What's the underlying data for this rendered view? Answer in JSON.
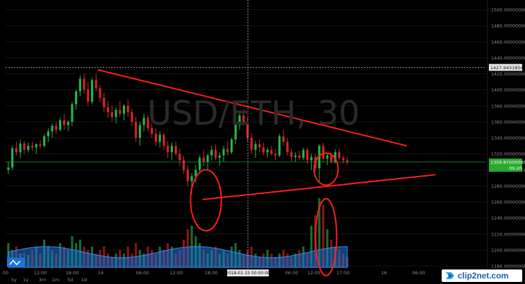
{
  "watermark": {
    "logo_text": "clip2net.com"
  },
  "chart_data": {
    "type": "candlestick",
    "symbol_watermark": "USD/ETH, 30",
    "price_axis": {
      "min": 1180,
      "max": 1500,
      "ticks": [
        "1500.00000000",
        "1480.00000000",
        "1460.00000000",
        "1440.00000000",
        "1420.00000000",
        "1400.00000000",
        "1380.00000000",
        "1360.00000000",
        "1340.00000000",
        "1320.00000000",
        "1300.00000000",
        "1280.00000000",
        "1260.00000000",
        "1240.00000000",
        "1220.00000000",
        "1200.00000000",
        "1180.00000000"
      ],
      "tick_values": [
        1500,
        1480,
        1460,
        1440,
        1420,
        1400,
        1380,
        1360,
        1340,
        1320,
        1300,
        1280,
        1260,
        1240,
        1220,
        1200,
        1180
      ],
      "crosshair_price_label": "1427.94318547",
      "crosshair_price": 1427.94,
      "last_price_label": "1309.87000000",
      "last_price": 1309.87,
      "countdown_label": "09:20"
    },
    "time_axis": {
      "labels": [
        "00",
        "12:00",
        "18:00",
        "14",
        "06:00",
        "12:00",
        "18:00",
        "18:00",
        "06:00",
        "12:00",
        "17:00",
        "16",
        "06:00"
      ],
      "crosshair_time_label": "2018-01-15 00:00:00"
    },
    "timeframe_buttons": [
      "5y",
      "1y",
      "3m",
      "1m",
      "5d",
      "1d"
    ],
    "candles": [
      [
        1300,
        1310,
        1295,
        1303
      ],
      [
        1303,
        1330,
        1300,
        1327
      ],
      [
        1327,
        1335,
        1318,
        1322
      ],
      [
        1322,
        1338,
        1315,
        1333
      ],
      [
        1333,
        1336,
        1320,
        1325
      ],
      [
        1325,
        1334,
        1322,
        1330
      ],
      [
        1330,
        1335,
        1324,
        1328
      ],
      [
        1328,
        1333,
        1320,
        1332
      ],
      [
        1332,
        1337,
        1326,
        1330
      ],
      [
        1330,
        1345,
        1328,
        1342
      ],
      [
        1342,
        1352,
        1335,
        1348
      ],
      [
        1348,
        1358,
        1340,
        1355
      ],
      [
        1355,
        1360,
        1345,
        1350
      ],
      [
        1350,
        1365,
        1348,
        1362
      ],
      [
        1362,
        1370,
        1350,
        1356
      ],
      [
        1356,
        1362,
        1348,
        1360
      ],
      [
        1360,
        1385,
        1355,
        1382
      ],
      [
        1382,
        1400,
        1375,
        1398
      ],
      [
        1398,
        1418,
        1392,
        1414
      ],
      [
        1414,
        1420,
        1395,
        1400
      ],
      [
        1400,
        1410,
        1380,
        1385
      ],
      [
        1385,
        1415,
        1382,
        1412
      ],
      [
        1412,
        1420,
        1398,
        1402
      ],
      [
        1402,
        1406,
        1385,
        1390
      ],
      [
        1390,
        1396,
        1372,
        1378
      ],
      [
        1378,
        1386,
        1365,
        1372
      ],
      [
        1372,
        1380,
        1360,
        1366
      ],
      [
        1366,
        1378,
        1358,
        1375
      ],
      [
        1375,
        1386,
        1366,
        1370
      ],
      [
        1370,
        1382,
        1362,
        1380
      ],
      [
        1380,
        1388,
        1366,
        1372
      ],
      [
        1372,
        1376,
        1355,
        1360
      ],
      [
        1360,
        1366,
        1335,
        1340
      ],
      [
        1340,
        1360,
        1330,
        1356
      ],
      [
        1356,
        1370,
        1348,
        1365
      ],
      [
        1365,
        1368,
        1348,
        1352
      ],
      [
        1352,
        1358,
        1340,
        1345
      ],
      [
        1345,
        1352,
        1330,
        1335
      ],
      [
        1335,
        1348,
        1328,
        1344
      ],
      [
        1344,
        1346,
        1325,
        1330
      ],
      [
        1330,
        1336,
        1315,
        1322
      ],
      [
        1322,
        1334,
        1312,
        1330
      ],
      [
        1330,
        1335,
        1318,
        1320
      ],
      [
        1320,
        1326,
        1305,
        1312
      ],
      [
        1312,
        1318,
        1295,
        1300
      ],
      [
        1300,
        1305,
        1280,
        1286
      ],
      [
        1286,
        1296,
        1270,
        1292
      ],
      [
        1292,
        1306,
        1284,
        1300
      ],
      [
        1300,
        1318,
        1296,
        1315
      ],
      [
        1315,
        1325,
        1305,
        1310
      ],
      [
        1310,
        1320,
        1300,
        1318
      ],
      [
        1318,
        1330,
        1312,
        1325
      ],
      [
        1325,
        1332,
        1312,
        1315
      ],
      [
        1315,
        1322,
        1305,
        1318
      ],
      [
        1318,
        1330,
        1310,
        1326
      ],
      [
        1326,
        1336,
        1318,
        1322
      ],
      [
        1322,
        1340,
        1320,
        1338
      ],
      [
        1338,
        1360,
        1332,
        1356
      ],
      [
        1356,
        1372,
        1350,
        1368
      ],
      [
        1368,
        1376,
        1355,
        1360
      ],
      [
        1360,
        1365,
        1335,
        1340
      ],
      [
        1340,
        1346,
        1320,
        1325
      ],
      [
        1325,
        1336,
        1315,
        1332
      ],
      [
        1332,
        1338,
        1322,
        1328
      ],
      [
        1328,
        1334,
        1318,
        1322
      ],
      [
        1322,
        1328,
        1315,
        1325
      ],
      [
        1325,
        1330,
        1318,
        1320
      ],
      [
        1320,
        1326,
        1312,
        1318
      ],
      [
        1318,
        1345,
        1316,
        1342
      ],
      [
        1342,
        1350,
        1330,
        1335
      ],
      [
        1335,
        1340,
        1318,
        1322
      ],
      [
        1322,
        1326,
        1310,
        1316
      ],
      [
        1316,
        1322,
        1310,
        1318
      ],
      [
        1318,
        1324,
        1312,
        1315
      ],
      [
        1315,
        1328,
        1312,
        1325
      ],
      [
        1325,
        1328,
        1308,
        1312
      ],
      [
        1312,
        1320,
        1300,
        1316
      ],
      [
        1316,
        1320,
        1298,
        1302
      ],
      [
        1302,
        1332,
        1286,
        1330
      ],
      [
        1330,
        1334,
        1310,
        1314
      ],
      [
        1314,
        1320,
        1306,
        1318
      ],
      [
        1318,
        1322,
        1308,
        1310
      ],
      [
        1310,
        1326,
        1308,
        1322
      ],
      [
        1322,
        1326,
        1312,
        1315
      ],
      [
        1315,
        1318,
        1308,
        1312
      ],
      [
        1312,
        1316,
        1306,
        1310
      ]
    ],
    "volume": [
      0.35,
      0.25,
      0.3,
      0.2,
      0.22,
      0.18,
      0.25,
      0.3,
      0.2,
      0.4,
      0.3,
      0.25,
      0.2,
      0.35,
      0.3,
      0.25,
      0.45,
      0.35,
      0.4,
      0.3,
      0.25,
      0.3,
      0.2,
      0.25,
      0.3,
      0.2,
      0.15,
      0.2,
      0.25,
      0.2,
      0.3,
      0.2,
      0.35,
      0.25,
      0.2,
      0.3,
      0.25,
      0.2,
      0.3,
      0.25,
      0.35,
      0.3,
      0.2,
      0.25,
      0.4,
      0.55,
      0.6,
      0.45,
      0.35,
      0.25,
      0.2,
      0.25,
      0.3,
      0.2,
      0.25,
      0.2,
      0.3,
      0.35,
      0.25,
      0.2,
      0.25,
      0.3,
      0.2,
      0.15,
      0.2,
      0.25,
      0.2,
      0.15,
      0.2,
      0.25,
      0.2,
      0.15,
      0.2,
      0.25,
      0.3,
      0.2,
      0.6,
      0.75,
      1.0,
      0.9,
      0.55,
      0.4,
      0.3,
      0.25,
      0.2,
      0.15
    ],
    "trendlines": [
      {
        "from": [
          0.192,
          1425
        ],
        "to": [
          0.835,
          1330
        ],
        "color": "#ff1e1e"
      },
      {
        "from": [
          0.41,
          1263
        ],
        "to": [
          0.895,
          1294
        ],
        "color": "#ff1e1e"
      }
    ],
    "ellipses": [
      {
        "cx": 0.417,
        "price_center": 1262,
        "rx": 0.032,
        "price_ry": 38,
        "color": "#ff1e1e"
      },
      {
        "cx": 0.667,
        "price_center": 1301,
        "rx": 0.025,
        "price_ry": 20,
        "color": "#ff1e1e"
      },
      {
        "cx": 0.667,
        "price_center": 1216,
        "rx": 0.022,
        "price_ry": 48,
        "color": "#ff1e1e"
      }
    ],
    "colors": {
      "background": "#000000",
      "up": "#1fb84a",
      "down": "#d8232a",
      "volume_area": "#1e73d8",
      "axis_text": "#8c8c8c",
      "crosshair": "#9a9a9a",
      "last_price_bg": "#2aa830",
      "grid": "#141414"
    }
  }
}
